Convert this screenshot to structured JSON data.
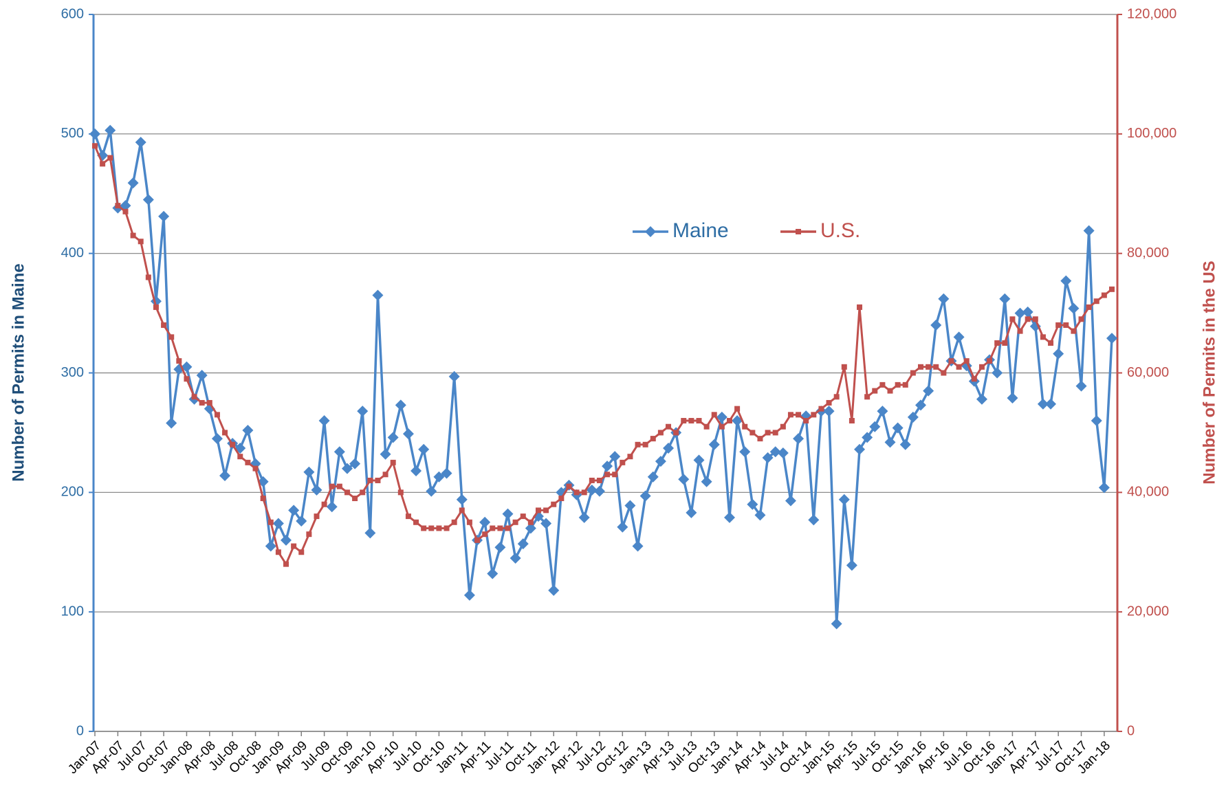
{
  "chart_data": {
    "type": "line",
    "categories": [
      "Jan-07",
      null,
      null,
      "Apr-07",
      null,
      null,
      "Jul-07",
      null,
      null,
      "Oct-07",
      null,
      null,
      "Jan-08",
      null,
      null,
      "Apr-08",
      null,
      null,
      "Jul-08",
      null,
      null,
      "Oct-08",
      null,
      null,
      "Jan-09",
      null,
      null,
      "Apr-09",
      null,
      null,
      "Jul-09",
      null,
      null,
      "Oct-09",
      null,
      null,
      "Jan-10",
      null,
      null,
      "Apr-10",
      null,
      null,
      "Jul-10",
      null,
      null,
      "Oct-10",
      null,
      null,
      "Jan-11",
      null,
      null,
      "Apr-11",
      null,
      null,
      "Jul-11",
      null,
      null,
      "Oct-11",
      null,
      null,
      "Jan-12",
      null,
      null,
      "Apr-12",
      null,
      null,
      "Jul-12",
      null,
      null,
      "Oct-12",
      null,
      null,
      "Jan-13",
      null,
      null,
      "Apr-13",
      null,
      null,
      "Jul-13",
      null,
      null,
      "Oct-13",
      null,
      null,
      "Jan-14",
      null,
      null,
      "Apr-14",
      null,
      null,
      "Jul-14",
      null,
      null,
      "Oct-14",
      null,
      null,
      "Jan-15",
      null,
      null,
      "Apr-15",
      null,
      null,
      "Jul-15",
      null,
      null,
      "Oct-15",
      null,
      null,
      "Jan-16",
      null,
      null,
      "Apr-16",
      null,
      null,
      "Jul-16",
      null,
      null,
      "Oct-16",
      null,
      null,
      "Jan-17",
      null,
      null,
      "Apr-17",
      null,
      null,
      "Jul-17",
      null,
      null,
      "Oct-17",
      null,
      null,
      "Jan-18",
      null
    ],
    "series": [
      {
        "name": "Maine",
        "color": "#4a86c8",
        "marker": "diamond",
        "values": [
          500,
          482,
          503,
          438,
          440,
          459,
          493,
          445,
          360,
          431,
          258,
          303,
          305,
          278,
          298,
          270,
          245,
          214,
          241,
          237,
          252,
          224,
          209,
          155,
          174,
          160,
          185,
          176,
          217,
          202,
          260,
          188,
          234,
          220,
          224,
          268,
          166,
          365,
          232,
          246,
          273,
          249,
          218,
          236,
          201,
          213,
          216,
          297,
          194,
          114,
          160,
          175,
          132,
          154,
          182,
          145,
          157,
          170,
          180,
          174,
          118,
          200,
          206,
          198,
          179,
          202,
          201,
          222,
          230,
          171,
          189,
          155,
          197,
          213,
          226,
          237,
          250,
          211,
          183,
          227,
          209,
          240,
          263,
          179,
          260,
          234,
          190,
          181,
          229,
          234,
          233,
          193,
          245,
          264,
          177,
          268,
          268,
          90,
          194,
          139,
          236,
          246,
          255,
          268,
          242,
          254,
          240,
          263,
          273,
          285,
          340,
          362,
          310,
          330,
          306,
          293,
          278,
          311,
          300,
          362,
          279,
          350,
          351,
          339,
          274,
          274,
          316,
          377,
          354,
          289,
          419,
          260,
          204,
          329
        ]
      },
      {
        "name": "U.S.",
        "color": "#c0504d",
        "marker": "square",
        "axis": "y2",
        "values": [
          98000,
          95000,
          96000,
          88000,
          87000,
          83000,
          82000,
          76000,
          71000,
          68000,
          66000,
          62000,
          59000,
          56000,
          55000,
          55000,
          53000,
          50000,
          48000,
          46000,
          45000,
          44000,
          39000,
          35000,
          30000,
          28000,
          31000,
          30000,
          33000,
          36000,
          38000,
          41000,
          41000,
          40000,
          39000,
          40000,
          42000,
          42000,
          43000,
          45000,
          40000,
          36000,
          35000,
          34000,
          34000,
          34000,
          34000,
          35000,
          37000,
          35000,
          32000,
          33000,
          34000,
          34000,
          34000,
          35000,
          36000,
          35000,
          37000,
          37000,
          38000,
          39000,
          41000,
          40000,
          40000,
          42000,
          42000,
          43000,
          43000,
          45000,
          46000,
          48000,
          48000,
          49000,
          50000,
          51000,
          50000,
          52000,
          52000,
          52000,
          51000,
          53000,
          51000,
          52000,
          54000,
          51000,
          50000,
          49000,
          50000,
          50000,
          51000,
          53000,
          53000,
          52000,
          53000,
          54000,
          55000,
          56000,
          61000,
          52000,
          71000,
          56000,
          57000,
          58000,
          57000,
          58000,
          58000,
          60000,
          61000,
          61000,
          61000,
          60000,
          62000,
          61000,
          62000,
          59000,
          61000,
          62000,
          65000,
          65000,
          69000,
          67000,
          69000,
          69000,
          66000,
          65000,
          68000,
          68000,
          67000,
          69000,
          71000,
          72000,
          73000,
          74000
        ]
      }
    ],
    "ylabel": "Number of Permits in Maine",
    "y2label": "Number of Permits in the US",
    "ylim": [
      0,
      600
    ],
    "yticks": [
      0,
      100,
      200,
      300,
      400,
      500,
      600
    ],
    "y2lim": [
      0,
      120000
    ],
    "y2ticks": [
      0,
      {
        "value": 20000,
        "label": "20,000"
      },
      {
        "value": 40000,
        "label": "40,000"
      },
      {
        "value": 60000,
        "label": "60,000"
      },
      {
        "value": 80000,
        "label": "80,000"
      },
      {
        "value": 100000,
        "label": "100,000"
      },
      {
        "value": 120000,
        "label": "120,000"
      }
    ],
    "grid": true,
    "legend": "center"
  }
}
